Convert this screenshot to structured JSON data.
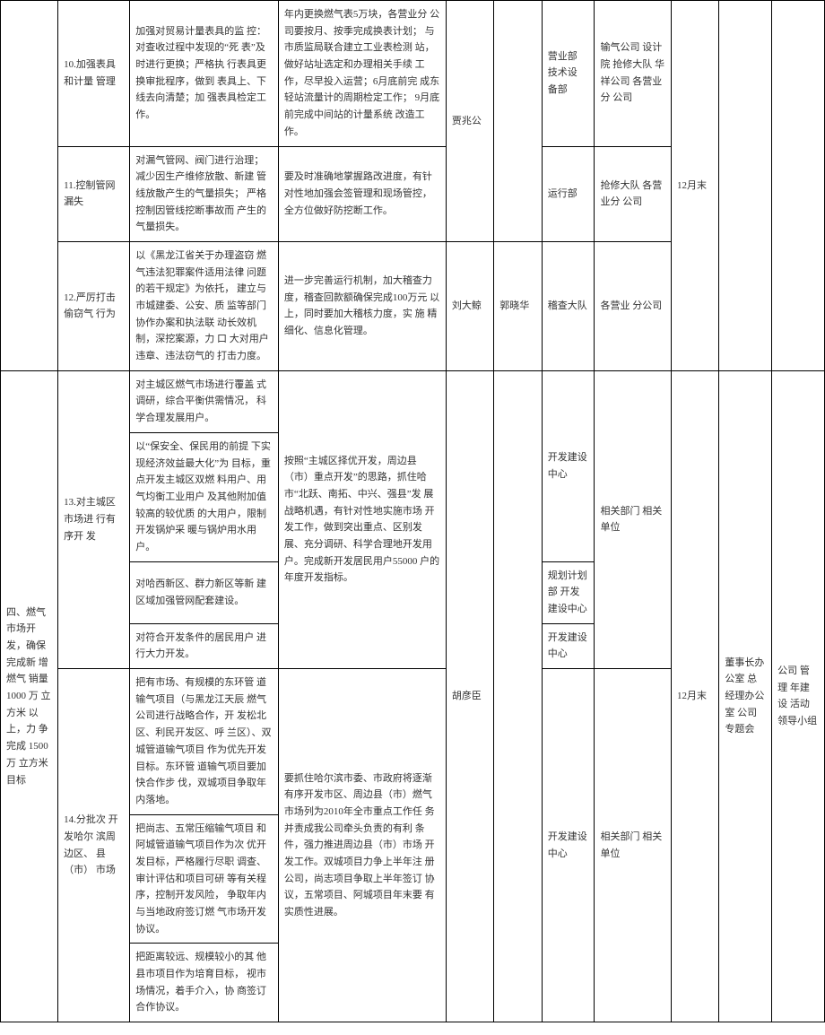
{
  "rows": {
    "r1": {
      "task": "10.加强表具和计量 管理",
      "detail": "加强对贸易计量表具的监 控：对查收过程中发现的“死 表”及时进行更换；严格执 行表具更换审批程序，做到 表具上、下线去向清楚；加 强表具检定工作。",
      "measure": "年内更换燃气表5万块，各营业分 公司要按月、按季完成换表计划； 与市质监局联合建立工业表检测 站，做好站址选定和办理相关手续 工作，尽早投入运营；6月底前完 成东轻站流量计的周期检定工作； 9月底前完成中间站的计量系统 改造工作。",
      "p5": "贾兆公",
      "p6": "",
      "p7": "营业部 技术设 备部",
      "p8": "输气公司 设计院 抢修大队 华祥公司 各营业分 公司",
      "p9": "12月末"
    },
    "r2": {
      "task": "11.控制管网漏失",
      "detail": "对漏气管网、阀门进行治理；减少因生产维修放散、新建 管线放散产生的气量损失； 严格控制因管线挖断事故而 产生的气量损失。",
      "measure": "要及时准确地掌握路改进度，有针 对性地加强会签管理和现场管控， 全方位做好防挖断工作。",
      "p7": "运行部",
      "p8": "抢修大队 各营业分 公司"
    },
    "r3": {
      "task": "12.严厉打击偷窃气 行为",
      "detail": "以《黑龙江省关于办理盗窃 燃气违法犯罪案件适用法律 问题的若干规定》为依托， 建立与市城建委、公安、质 监等部门协作办案和执法联 动长效机制，深挖案源，力 口 大对用户违章、违法窃气的 打击力度。",
      "measure": "进一步完善运行机制，加大稽查力 度，稽查回款额确保完成100万元 以上，同时要加大稽核力度，实 施 精细化、信息化管理。",
      "p5": "刘大鲸",
      "p6": "郭晓华",
      "p7": "稽查大队",
      "p8": "各营业 分公司"
    },
    "section4": {
      "title": "四、燃气 市场开发，确保完成新 增燃气 销量1000 万 立方米 以上，力 争完成 1500 万 立方米 目标",
      "r4a_detail": "对主城区燃气市场进行覆盖 式调研，综合平衡供需情况， 科学合理发展用户。",
      "r4_task": "13.对主城区市场进 行有序开 发",
      "r4b_detail": "以“保安全、保民用的前提 下实现经济效益最大化”为 目标，重点开发主城区双燃 料用户、用气均衡工业用户 及其他附加值较高的较优质 的大用户，限制开发锅炉采 暖与锅炉用水用户。",
      "r4_measure": "按照“主城区择优开发，周边县 （市）重点开发”的思路，抓住哈 市“北跃、南拓、中兴、强县”发 展战略机遇，有针对性地实施市场 开发工作，做到突出重点、区别发 展、充分调研、科学合理地开发用 户。完成新开发居民用户55000 户的年度开发指标。",
      "r4_p7a": "开发建设中心",
      "r4_p8": "相关部门 相关单位",
      "r4c_detail": "对哈西新区、群力新区等新 建区域加强管网配套建设。",
      "r4_p7c": "规划计划部 开发建设中心",
      "r4d_detail": "对符合开发条件的居民用户 进行大力开发。",
      "r4_p7d": "开发建设中心",
      "p5": "胡彦臣",
      "p9": "12月末",
      "p10": "董事长办公室 总经理办公室 公司专题会",
      "p11": "公司 管理 年建设 活动 领导小组",
      "r5_task": "14.分批次 开发哈尔 滨周边区、 县（市） 市场",
      "r5a_detail": "把有市场、有规模的东环管 道输气项目（与黑龙江天辰 燃气公司进行战略合作，开 发松北区、利民开发区、呼 兰区）、双城管道输气项目 作为优先开发目标。东环管 道输气项目要加快合作步 伐，双城项目争取年内落地。",
      "r5_measure": "要抓住哈尔滨市委、市政府将逐渐 有序开发市区、周边县（市）燃气 市场列为2010年全市重点工作任 务并责成我公司牵头负责的有利 条件，强力推进周边县（市）市场 开发工作。双城项目力争上半年注 册公司，尚志项目争取上半年签订 协议，五常项目、阿城项目年末要 有实质性进展。",
      "r5_p7": "开发建设中心",
      "r5_p8": "相关部门 相关单位",
      "r5b_detail": "把尚志、五常压缩输气项目 和阿城管道输气项目作为次 优开发目标，严格履行尽职 调查、审计评估和项目可研 等有关程序，控制开发风险， 争取年内与当地政府签订燃 气市场开发协议。",
      "r5c_detail": "把距离较远、规模较小的其 他县市项目作为培育目标， 视市场情况，着手介入，协 商签订合作协议。"
    }
  }
}
